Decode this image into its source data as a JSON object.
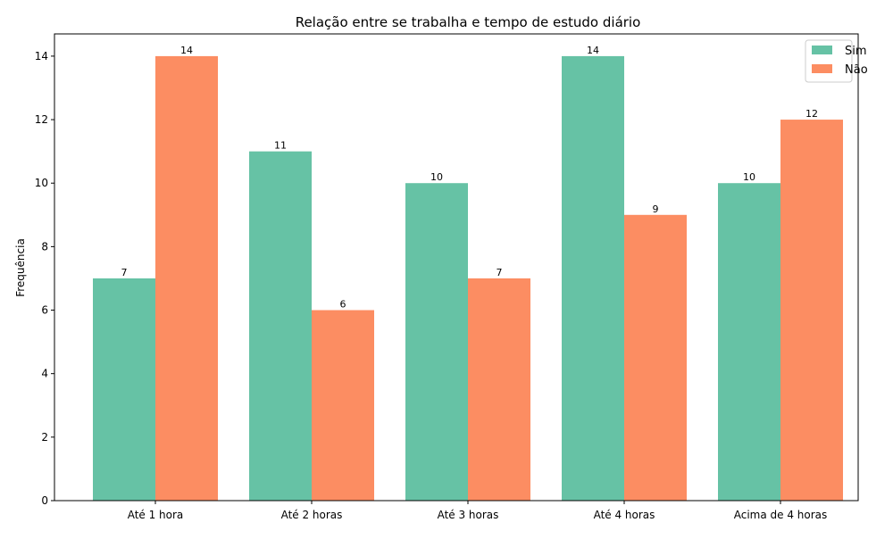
{
  "chart_data": {
    "type": "bar",
    "title": "Relação entre se trabalha e tempo de estudo diário",
    "xlabel": "",
    "ylabel": "Frequência",
    "categories": [
      "Até 1 hora",
      "Até 2 horas",
      "Até 3 horas",
      "Até 4 horas",
      "Acima de 4 horas"
    ],
    "series": [
      {
        "name": "Sim",
        "values": [
          7,
          11,
          10,
          14,
          10
        ],
        "color": "#66c2a5"
      },
      {
        "name": "Não",
        "values": [
          14,
          6,
          7,
          9,
          12
        ],
        "color": "#fc8d62"
      }
    ],
    "ylim": [
      0,
      14.7
    ],
    "yticks": [
      0,
      2,
      4,
      6,
      8,
      10,
      12,
      14
    ],
    "grid": false,
    "legend": "top-right",
    "data_labels": true
  }
}
